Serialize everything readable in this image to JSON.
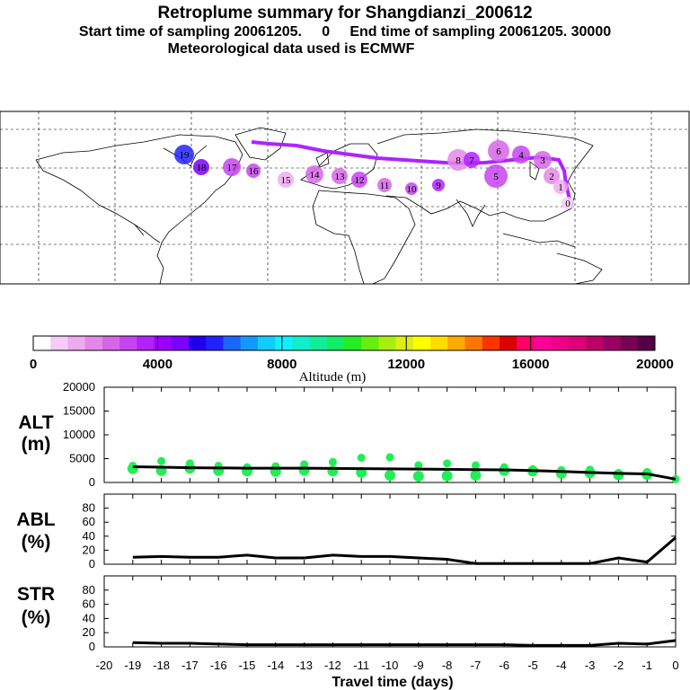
{
  "header": {
    "title": "Retroplume summary for Shangdianzi_200612",
    "sampling_line": "Start time of sampling 20061205.     0     End time of sampling 20061205. 30000",
    "met_line": "Meteorological data used is ECMWF"
  },
  "colorbar": {
    "title": "Altitude (m)",
    "tick_labels": [
      "0",
      "4000",
      "8000",
      "12000",
      "16000",
      "20000"
    ],
    "colors": [
      "#ffffff",
      "#f6ccf6",
      "#eeaaee",
      "#e488e8",
      "#d666e8",
      "#c644f0",
      "#b022ff",
      "#9a00ff",
      "#7a00ff",
      "#2200ee",
      "#2222ff",
      "#1a66ff",
      "#1199ff",
      "#11ccff",
      "#11eeff",
      "#11eecc",
      "#11ee99",
      "#11ee66",
      "#22ee22",
      "#66ee11",
      "#aaee11",
      "#ddee11",
      "#ffff00",
      "#ffdd00",
      "#ffaa00",
      "#ff7700",
      "#ff3300",
      "#dd0000",
      "#ff0066",
      "#ff0099",
      "#ee0088",
      "#dd0077",
      "#bb0066",
      "#990066",
      "#770055",
      "#550044"
    ]
  },
  "map": {
    "plume_numbers": [
      "19",
      "18",
      "17",
      "16",
      "15",
      "14",
      "13",
      "12",
      "11",
      "10",
      "9",
      "8",
      "7",
      "6",
      "5",
      "4",
      "3",
      "2",
      "1",
      "0"
    ]
  },
  "chart_data": {
    "type": "line",
    "x": [
      -19,
      -18,
      -17,
      -16,
      -15,
      -14,
      -13,
      -12,
      -11,
      -10,
      -9,
      -8,
      -7,
      -6,
      -5,
      -4,
      -3,
      -2,
      -1,
      0
    ],
    "xlabel": "Travel time (days)",
    "xlim": [
      -20,
      0
    ],
    "xtick_labels": [
      "-20",
      "-19",
      "-18",
      "-17",
      "-16",
      "-15",
      "-14",
      "-13",
      "-12",
      "-11",
      "-10",
      "-9",
      "-8",
      "-7",
      "-6",
      "-5",
      "-4",
      "-3",
      "-2",
      "-1",
      "0"
    ],
    "panels": [
      {
        "name": "ALT",
        "ylabel": [
          "ALT",
          "(m)"
        ],
        "ylim": [
          0,
          20000
        ],
        "ytick_labels": [
          "0",
          "5000",
          "10000",
          "15000",
          "20000"
        ],
        "series": [
          {
            "name": "mean altitude",
            "values": [
              3300,
              3200,
              3100,
              3050,
              3000,
              3000,
              3000,
              2950,
              2900,
              2850,
              2800,
              2750,
              2700,
              2650,
              2500,
              2300,
              2100,
              1900,
              1800,
              700
            ]
          }
        ],
        "cluster_points": [
          {
            "x": -19,
            "y": [
              3500,
              2900
            ]
          },
          {
            "x": -18,
            "y": [
              4500,
              2500
            ]
          },
          {
            "x": -17,
            "y": [
              4000,
              3000
            ]
          },
          {
            "x": -16,
            "y": [
              3500,
              2500
            ]
          },
          {
            "x": -15,
            "y": [
              3200,
              2400
            ]
          },
          {
            "x": -14,
            "y": [
              3400,
              2300
            ]
          },
          {
            "x": -13,
            "y": [
              3800,
              2600
            ]
          },
          {
            "x": -12,
            "y": [
              4300,
              2400
            ]
          },
          {
            "x": -11,
            "y": [
              5200,
              2100
            ]
          },
          {
            "x": -10,
            "y": [
              5300,
              1500
            ]
          },
          {
            "x": -9,
            "y": [
              3600,
              1300
            ]
          },
          {
            "x": -8,
            "y": [
              4000,
              1400
            ]
          },
          {
            "x": -7,
            "y": [
              3600,
              1500
            ]
          },
          {
            "x": -6,
            "y": [
              3200,
              2500
            ]
          },
          {
            "x": -5,
            "y": [
              2800,
              2400
            ]
          },
          {
            "x": -4,
            "y": [
              2600,
              1900
            ]
          },
          {
            "x": -3,
            "y": [
              2700,
              2000
            ]
          },
          {
            "x": -2,
            "y": [
              2000,
              1600
            ]
          },
          {
            "x": -1,
            "y": [
              2200,
              1700
            ]
          },
          {
            "x": 0,
            "y": [
              700
            ]
          }
        ]
      },
      {
        "name": "ABL",
        "ylabel": [
          "ABL",
          "(%)"
        ],
        "ylim": [
          0,
          100
        ],
        "ytick_labels": [
          "0",
          "20",
          "40",
          "60",
          "80"
        ],
        "series": [
          {
            "name": "ABL fraction",
            "values": [
              10,
              11,
              10,
              10,
              13,
              9,
              9,
              13,
              11,
              11,
              9,
              7,
              1,
              1,
              1,
              1,
              1,
              9,
              3,
              38
            ]
          }
        ]
      },
      {
        "name": "STR",
        "ylabel": [
          "STR",
          "(%)"
        ],
        "ylim": [
          0,
          100
        ],
        "ytick_labels": [
          "0",
          "20",
          "40",
          "60",
          "80"
        ],
        "series": [
          {
            "name": "STR fraction",
            "values": [
              6,
              5,
              5,
              4,
              3,
              3,
              3,
              3,
              3,
              3,
              3,
              3,
              3,
              3,
              2,
              2,
              2,
              5,
              4,
              9
            ]
          }
        ]
      }
    ]
  }
}
